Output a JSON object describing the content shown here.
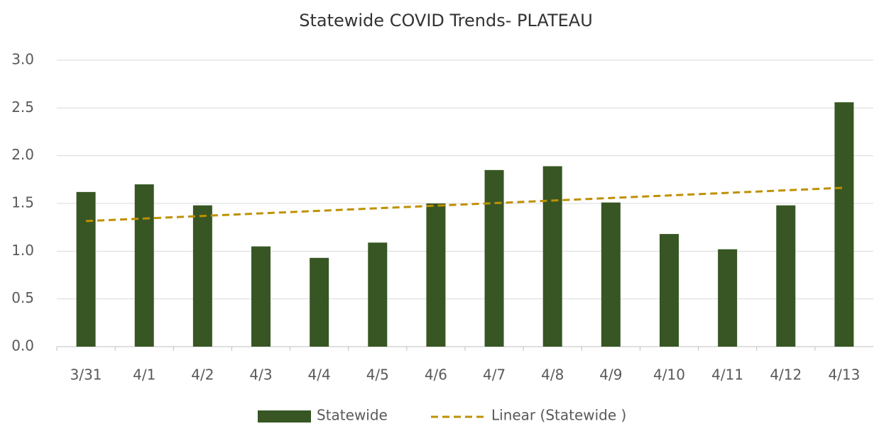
{
  "chart_data": {
    "type": "bar",
    "title": "Statewide COVID Trends- PLATEAU",
    "categories": [
      "3/31",
      "4/1",
      "4/2",
      "4/3",
      "4/4",
      "4/5",
      "4/6",
      "4/7",
      "4/8",
      "4/9",
      "4/10",
      "4/11",
      "4/12",
      "4/13"
    ],
    "series": [
      {
        "name": "Statewide",
        "color": "#375623",
        "values": [
          1.62,
          1.7,
          1.48,
          1.05,
          0.93,
          1.09,
          1.5,
          1.85,
          1.89,
          1.51,
          1.18,
          1.02,
          1.48,
          2.56
        ]
      }
    ],
    "trendline": {
      "name": "Linear (Statewide )",
      "type": "linear",
      "color": "#bf9000"
    },
    "ylim": [
      0,
      3
    ],
    "yticks": [
      {
        "value": 0,
        "label": "0.0"
      },
      0.5,
      {
        "value": 1,
        "label": "1.0"
      },
      1.5,
      {
        "value": 2,
        "label": "2.0"
      },
      2.5,
      {
        "value": 3,
        "label": "3.0"
      }
    ],
    "grid": true,
    "legend": "bottom"
  }
}
